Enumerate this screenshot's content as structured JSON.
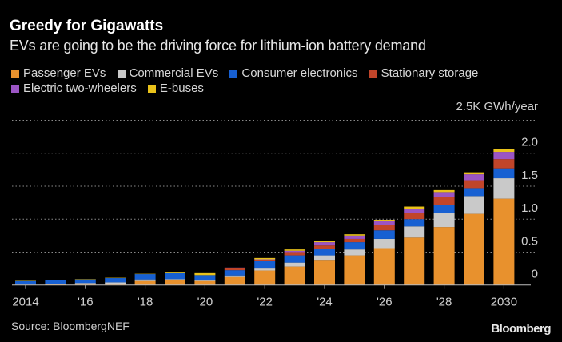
{
  "chart_data": {
    "type": "bar",
    "stacked": true,
    "title": "Greedy for Gigawatts",
    "subtitle": "EVs are going to be the driving force for lithium-ion battery demand",
    "ylabel": "",
    "yunit_label": "2.5K GWh/year",
    "ylim": [
      0,
      2.5
    ],
    "yticks": [
      "0",
      "0.5",
      "1.0",
      "1.5",
      "2.0"
    ],
    "grid": true,
    "legend_position": "top-left",
    "categories": [
      2014,
      2015,
      2016,
      2017,
      2018,
      2019,
      2020,
      2021,
      2022,
      2023,
      2024,
      2025,
      2026,
      2027,
      2028,
      2029,
      2030
    ],
    "xtick_labels": [
      {
        "year": 2014,
        "label": "2014"
      },
      {
        "year": 2016,
        "label": "'16"
      },
      {
        "year": 2018,
        "label": "'18"
      },
      {
        "year": 2020,
        "label": "'20"
      },
      {
        "year": 2022,
        "label": "'22"
      },
      {
        "year": 2024,
        "label": "'24"
      },
      {
        "year": 2026,
        "label": "'26"
      },
      {
        "year": 2028,
        "label": "'28"
      },
      {
        "year": 2030,
        "label": "2030"
      }
    ],
    "series": [
      {
        "name": "Passenger EVs",
        "color": "#e8912d",
        "values": [
          0.005,
          0.01,
          0.02,
          0.02,
          0.06,
          0.07,
          0.06,
          0.12,
          0.22,
          0.28,
          0.37,
          0.45,
          0.56,
          0.72,
          0.88,
          1.08,
          1.31
        ]
      },
      {
        "name": "Commercial EVs",
        "color": "#c9c9c9",
        "values": [
          0,
          0.005,
          0.01,
          0.02,
          0.025,
          0.02,
          0.02,
          0.025,
          0.03,
          0.06,
          0.08,
          0.09,
          0.14,
          0.17,
          0.21,
          0.27,
          0.31
        ]
      },
      {
        "name": "Consumer electronics",
        "color": "#1760d2",
        "values": [
          0.055,
          0.055,
          0.055,
          0.065,
          0.08,
          0.09,
          0.07,
          0.08,
          0.11,
          0.11,
          0.1,
          0.11,
          0.13,
          0.11,
          0.13,
          0.12,
          0.15
        ]
      },
      {
        "name": "Stationary storage",
        "color": "#c1452a",
        "values": [
          0,
          0,
          0,
          0,
          0,
          0,
          0,
          0.03,
          0.02,
          0.05,
          0.05,
          0.05,
          0.08,
          0.09,
          0.11,
          0.12,
          0.14
        ]
      },
      {
        "name": "Electric two-wheelers",
        "color": "#9b55c4",
        "values": [
          0,
          0,
          0,
          0,
          0,
          0,
          0,
          0.01,
          0.01,
          0.02,
          0.05,
          0.05,
          0.06,
          0.07,
          0.08,
          0.09,
          0.11
        ]
      },
      {
        "name": "E-buses",
        "color": "#e9c21a",
        "values": [
          0.005,
          0.005,
          0.005,
          0.005,
          0.005,
          0.015,
          0.03,
          0,
          0.02,
          0.02,
          0.02,
          0.02,
          0.02,
          0.03,
          0.03,
          0.03,
          0.04
        ]
      }
    ],
    "source": "Source: BloombergNEF"
  },
  "branding": {
    "logo": "Bloomberg"
  }
}
